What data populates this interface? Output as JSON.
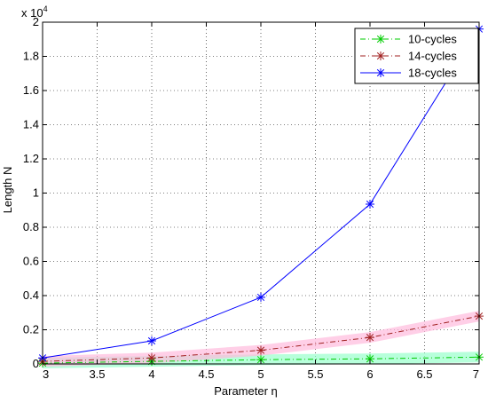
{
  "chart_data": {
    "type": "line",
    "xlabel": "Parameter η",
    "ylabel": "Length N",
    "multiplier_label": "x 10",
    "multiplier_exponent": "4",
    "xlim": [
      3,
      7
    ],
    "ylim": [
      0,
      20000
    ],
    "grid": true,
    "legend_position": "top-right",
    "x_ticks": [
      "3",
      "3.5",
      "4",
      "4.5",
      "5",
      "5.5",
      "6",
      "6.5",
      "7"
    ],
    "y_ticks": [
      "0",
      "0.2",
      "0.4",
      "0.6",
      "0.8",
      "1",
      "1.2",
      "1.4",
      "1.6",
      "1.8",
      "2"
    ],
    "x": [
      3,
      4,
      5,
      6,
      7
    ],
    "series": [
      {
        "name": "10-cycles",
        "values": [
          50,
          150,
          250,
          300,
          400
        ],
        "color": "#00cc00",
        "shade": "#99ffcc",
        "linestyle": "dash-dot"
      },
      {
        "name": "14-cycles",
        "values": [
          150,
          350,
          800,
          1550,
          2800
        ],
        "color": "#a02020",
        "shade": "#ffbbdd",
        "linestyle": "dash-dot"
      },
      {
        "name": "18-cycles",
        "values": [
          350,
          1350,
          3900,
          9350,
          19600
        ],
        "color": "#0000ff",
        "shade": null,
        "linestyle": "solid"
      }
    ]
  }
}
